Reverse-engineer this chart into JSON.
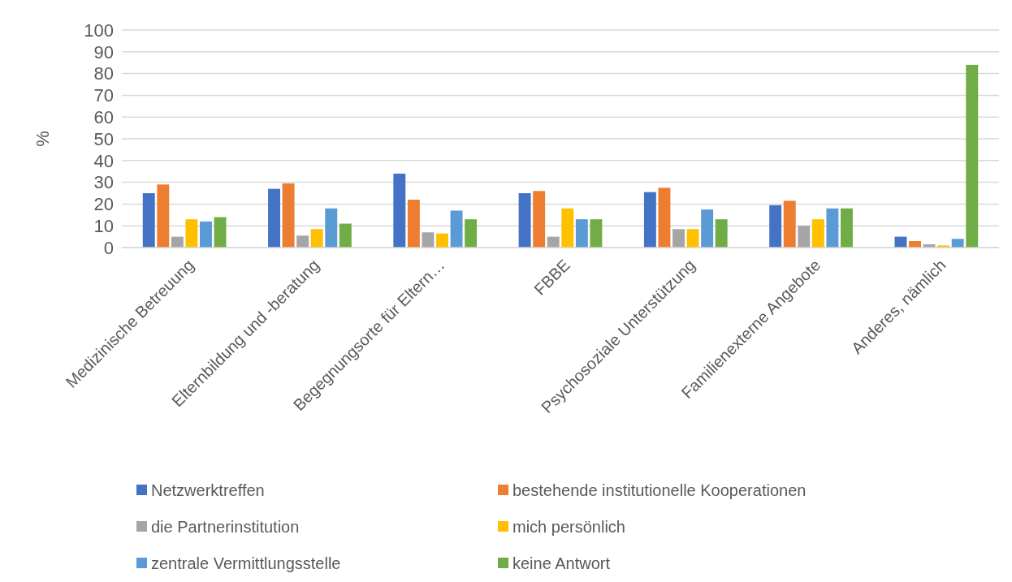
{
  "chart_data": {
    "type": "bar",
    "ylabel": "%",
    "categories": [
      "Medizinische Betreuung",
      "Elternbildung und -beratung",
      "Begegnungsorte für Eltern…",
      "FBBE",
      "Psychosoziale Unterstützung",
      "Familienexterne Angebote",
      "Anderes, nämlich"
    ],
    "series": [
      {
        "name": "Netzwerktreffen",
        "color": "#4472c4",
        "values": [
          25,
          27,
          34,
          25,
          25.5,
          19.5,
          5
        ]
      },
      {
        "name": "bestehende institutionelle Kooperationen",
        "color": "#ed7d31",
        "values": [
          29,
          29.5,
          22,
          26,
          27.5,
          21.5,
          3
        ]
      },
      {
        "name": "die Partnerinstitution",
        "color": "#a5a5a5",
        "values": [
          5,
          5.5,
          7,
          5,
          8.5,
          10,
          1.5
        ]
      },
      {
        "name": "mich persönlich",
        "color": "#ffc000",
        "values": [
          13,
          8.5,
          6.5,
          18,
          8.5,
          13,
          1
        ]
      },
      {
        "name": "zentrale Vermittlungsstelle",
        "color": "#5b9bd5",
        "values": [
          12,
          18,
          17,
          13,
          17.5,
          18,
          4
        ]
      },
      {
        "name": "keine Antwort",
        "color": "#70ad47",
        "values": [
          14,
          11,
          13,
          13,
          13,
          18,
          84
        ]
      }
    ],
    "ylim": [
      0,
      100
    ],
    "yticks": [
      0,
      10,
      20,
      30,
      40,
      50,
      60,
      70,
      80,
      90,
      100
    ],
    "grid": "y",
    "legend": "bottom"
  }
}
